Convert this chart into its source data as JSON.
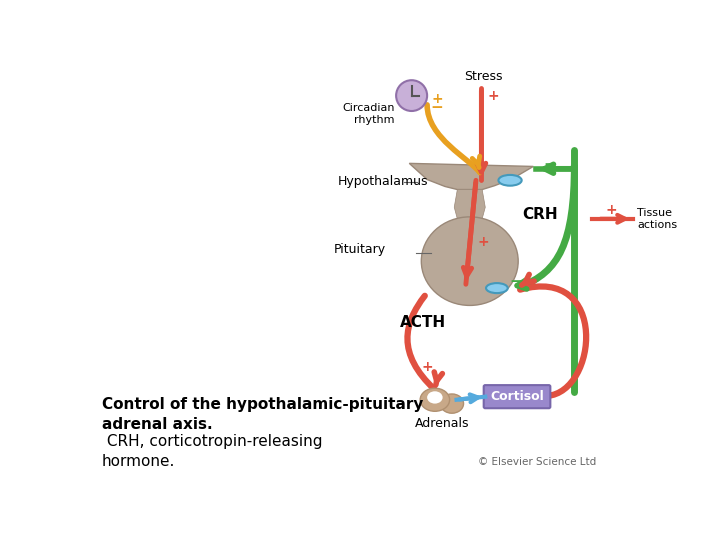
{
  "bg_color": "#ffffff",
  "red_color": "#e05040",
  "green_color": "#44aa44",
  "orange_color": "#e8a020",
  "blue_color": "#55aadd",
  "tan_color": "#c8a888",
  "tan_dark": "#b09070",
  "body_color": "#b8a898",
  "body_edge": "#9a8878",
  "cortisol_box_color": "#9988cc",
  "cortisol_box_edge": "#7766aa",
  "clock_face": "#c8b0d8",
  "clock_edge": "#9070a8",
  "receptor_face": "#88ccee",
  "receptor_edge": "#4499bb",
  "label_stress": "Stress",
  "label_circadian": "Circadian\nrhythm",
  "label_hypothalamus": "Hypothalamus",
  "label_CRH": "CRH",
  "label_pituitary": "Pituitary",
  "label_ACTH": "ACTH",
  "label_adrenals": "Adrenals",
  "label_cortisol": "Cortisol",
  "label_tissue_plus": "+",
  "label_tissue": "Tissue\nactions",
  "label_copyright": "© Elsevier Science Ltd",
  "title_bold": "Control of the hypothalamic-pituitary\nadrenal axis.",
  "title_normal": " CRH, corticotropin-releasing\nhormone."
}
